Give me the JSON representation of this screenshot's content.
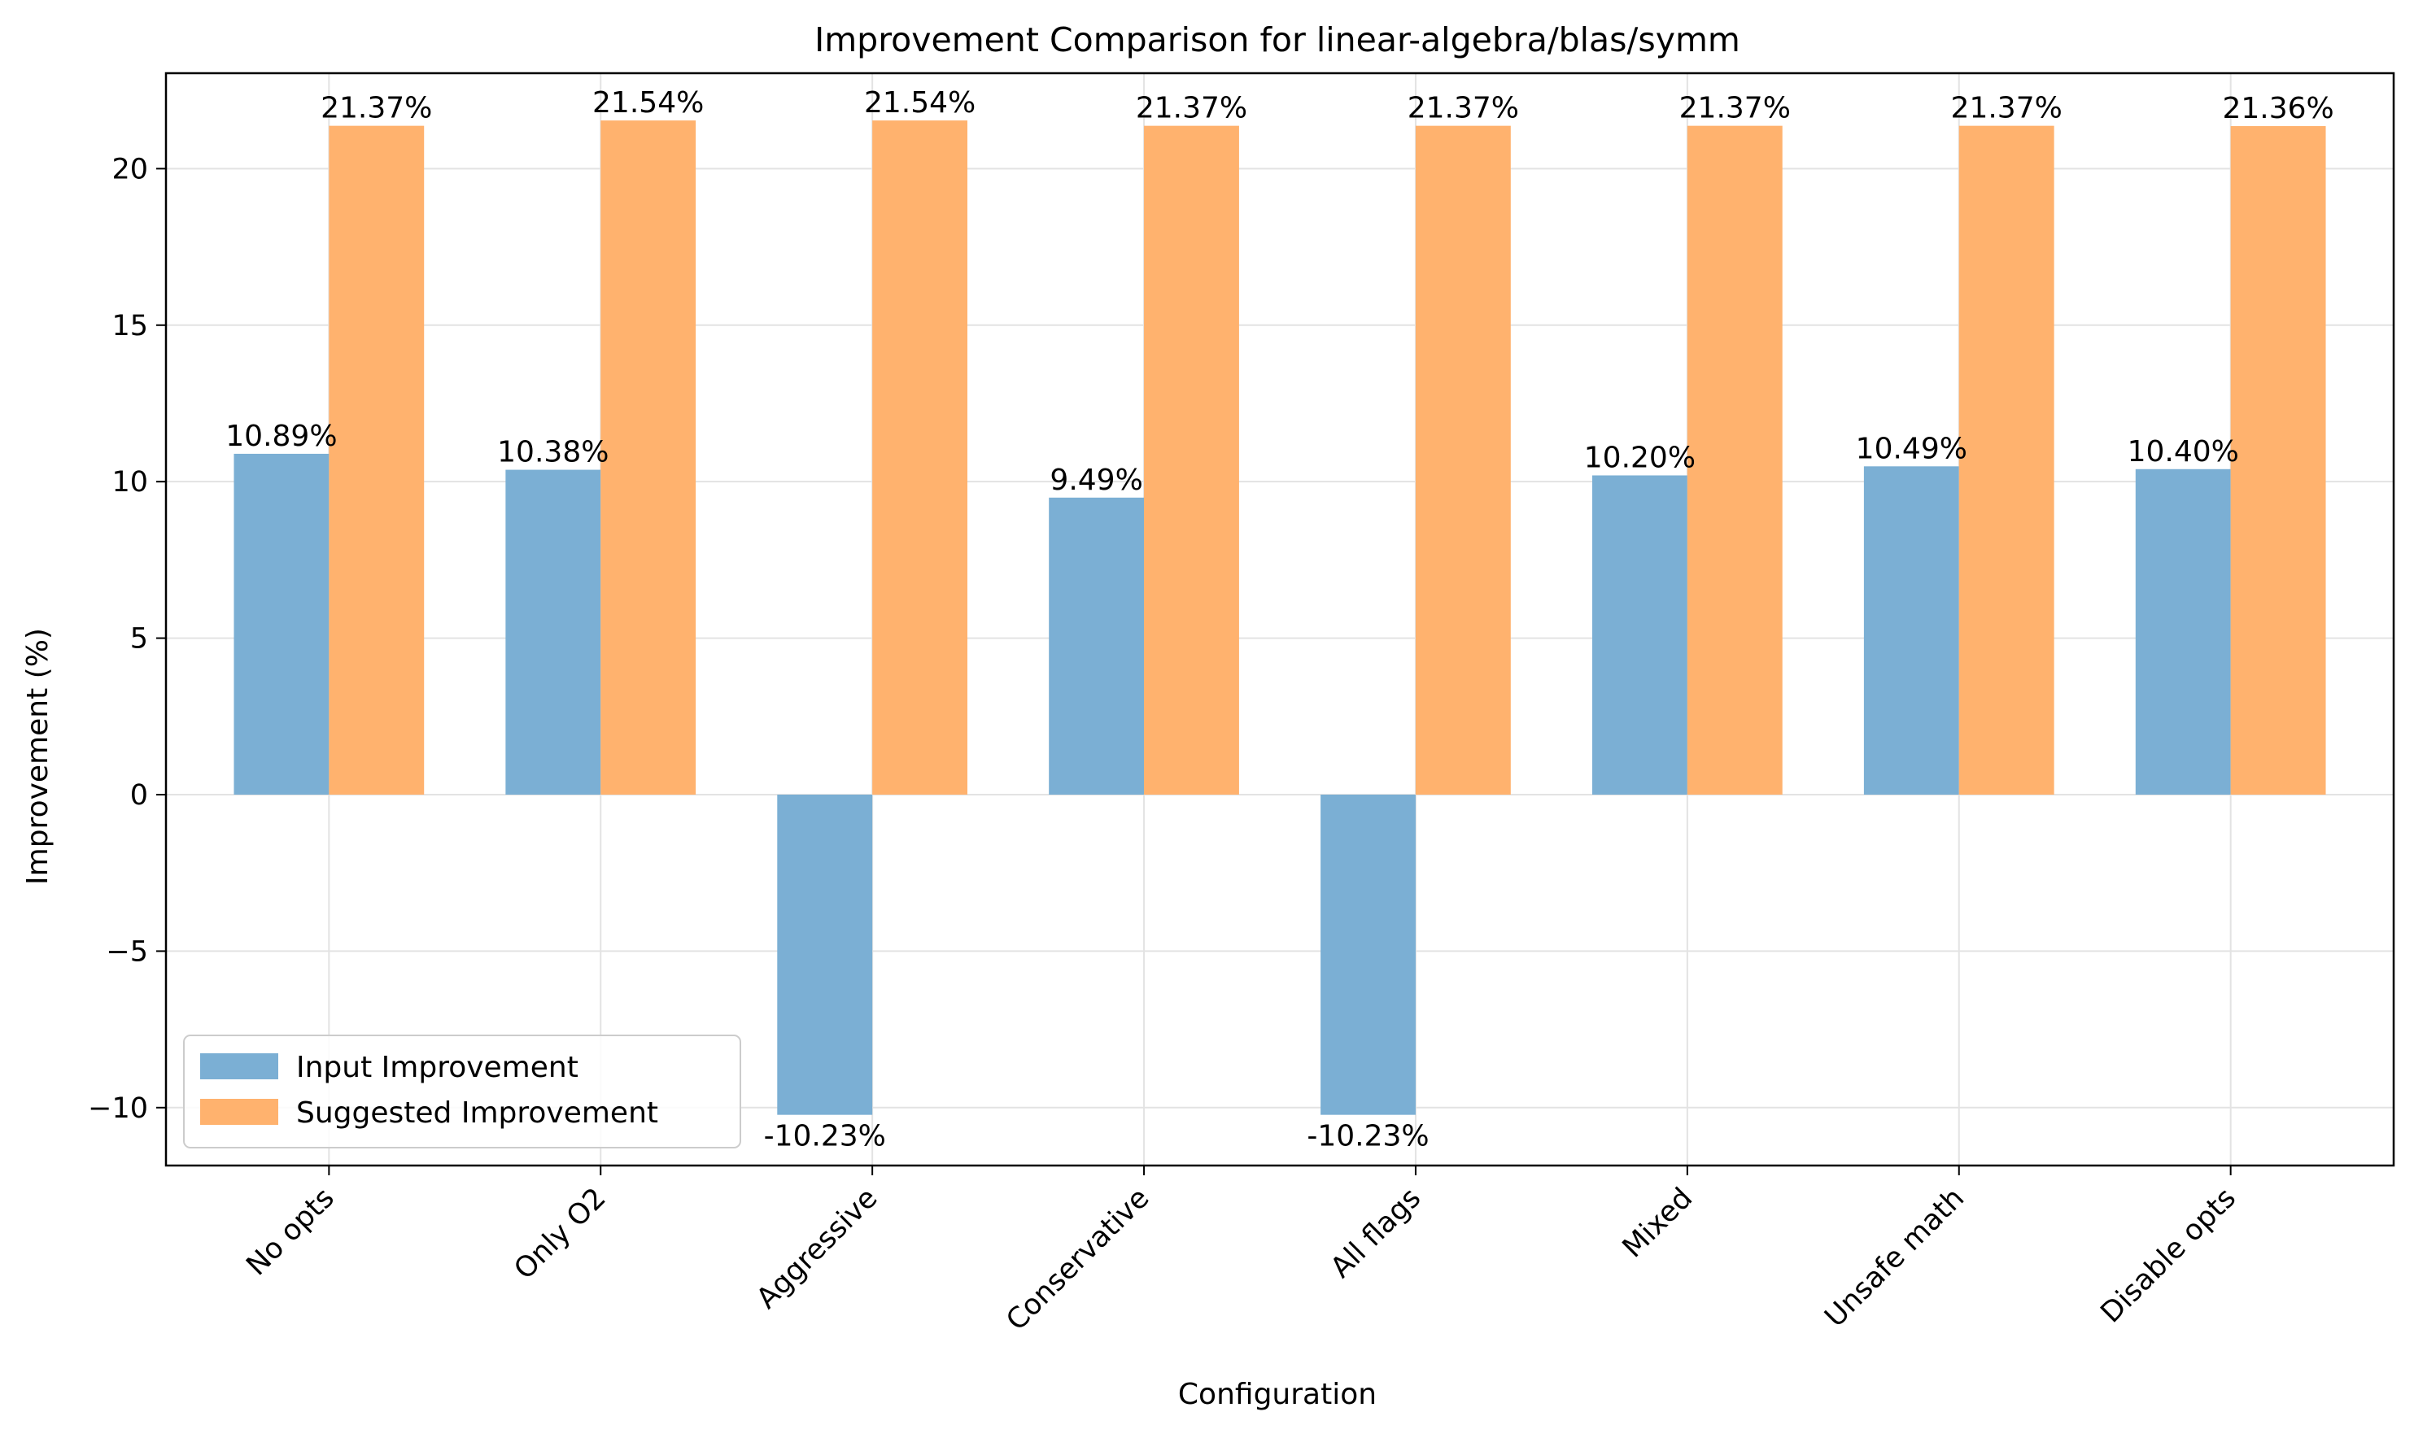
{
  "chart_data": {
    "type": "bar",
    "title": "Improvement Comparison for linear-algebra/blas/symm",
    "xlabel": "Configuration",
    "ylabel": "Improvement (%)",
    "ylim": [
      -11.85,
      23.05
    ],
    "yticks": [
      -10,
      -5,
      0,
      5,
      10,
      15,
      20
    ],
    "ytick_labels": [
      "−10",
      "−5",
      "0",
      "5",
      "10",
      "15",
      "20"
    ],
    "grid": true,
    "legend_position": "lower-left",
    "categories": [
      "No opts",
      "Only O2",
      "Aggressive",
      "Conservative",
      "All flags",
      "Mixed",
      "Unsafe math",
      "Disable opts"
    ],
    "series": [
      {
        "name": "Input Improvement",
        "color": "#7bafd4",
        "values": [
          10.89,
          10.38,
          -10.23,
          9.49,
          -10.23,
          10.2,
          10.49,
          10.4
        ],
        "labels": [
          "10.89%",
          "10.38%",
          "-10.23%",
          "9.49%",
          "-10.23%",
          "10.20%",
          "10.49%",
          "10.40%"
        ]
      },
      {
        "name": "Suggested Improvement",
        "color": "#ffb26e",
        "values": [
          21.37,
          21.54,
          21.54,
          21.37,
          21.37,
          21.37,
          21.37,
          21.36
        ],
        "labels": [
          "21.37%",
          "21.54%",
          "21.54%",
          "21.37%",
          "21.37%",
          "21.37%",
          "21.37%",
          "21.36%"
        ]
      }
    ]
  }
}
